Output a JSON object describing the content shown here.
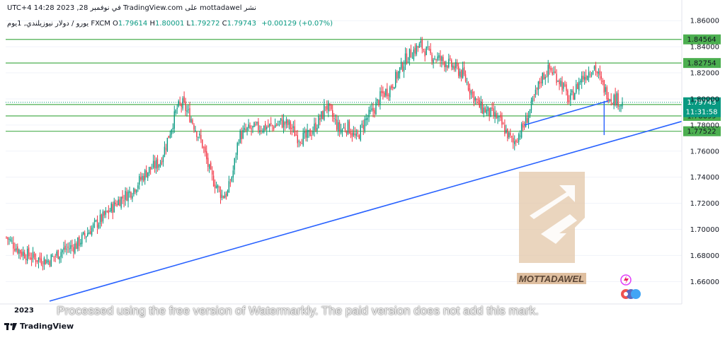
{
  "header": {
    "publisher_line": "نشر mottadawel على TradingView.com في نوفمبر 28, 2023 14:28 UTC+4",
    "symbol_title": "يورو / دولار نيوزيلندي, 1يوم  FXCM",
    "ohlc": {
      "open_label": "O",
      "open": "1.79614",
      "high_label": "H",
      "high": "1.80001",
      "low_label": "L",
      "low": "1.79272",
      "close_label": "C",
      "close": "1.79743",
      "change": "+0.00129 (+0.07%)"
    }
  },
  "footer": {
    "brand": "TradingView"
  },
  "watermark": {
    "logo_text": "MOTTADAWEL",
    "processed_text": "Processed using the free version of Watermarkly. The paid version does not add this mark."
  },
  "colors": {
    "up": "#089981",
    "down": "#f23645",
    "level_line": "#4caf50",
    "trend_line": "#2962ff",
    "level_label_bg": "#4caf50",
    "current_label_bg": "#089981"
  },
  "chart_data": {
    "type": "candlestick",
    "title": "",
    "ylim": [
      1.645,
      1.865
    ],
    "y_ticks": [
      "1.86000",
      "1.84000",
      "1.82000",
      "1.80000",
      "1.78000",
      "1.76000",
      "1.74000",
      "1.72000",
      "1.70000",
      "1.68000",
      "1.66000"
    ],
    "x_tick_labels": [
      "2023",
      "",
      "",
      "",
      "",
      "",
      "",
      "",
      "",
      "",
      "",
      ""
    ],
    "horizontal_levels": [
      "1.84564",
      "1.82754",
      "1.79570",
      "1.78699",
      "1.77522"
    ],
    "current_price": "1.79743",
    "countdown": "11:31:58",
    "close_path": [
      [
        0,
        1.694
      ],
      [
        10,
        1.683
      ],
      [
        20,
        1.678
      ],
      [
        30,
        1.676
      ],
      [
        40,
        1.684
      ],
      [
        50,
        1.688
      ],
      [
        60,
        1.7
      ],
      [
        70,
        1.71
      ],
      [
        80,
        1.722
      ],
      [
        90,
        1.73
      ],
      [
        100,
        1.744
      ],
      [
        110,
        1.752
      ],
      [
        116,
        1.772
      ],
      [
        122,
        1.793
      ],
      [
        126,
        1.796
      ],
      [
        132,
        1.785
      ],
      [
        140,
        1.765
      ],
      [
        146,
        1.741
      ],
      [
        154,
        1.726
      ],
      [
        158,
        1.728
      ],
      [
        162,
        1.745
      ],
      [
        166,
        1.771
      ],
      [
        172,
        1.776
      ],
      [
        180,
        1.778
      ],
      [
        190,
        1.779
      ],
      [
        196,
        1.782
      ],
      [
        202,
        1.78
      ],
      [
        208,
        1.771
      ],
      [
        214,
        1.77
      ],
      [
        220,
        1.778
      ],
      [
        226,
        1.788
      ],
      [
        228,
        1.796
      ],
      [
        232,
        1.788
      ],
      [
        238,
        1.776
      ],
      [
        244,
        1.779
      ],
      [
        250,
        1.769
      ],
      [
        256,
        1.783
      ],
      [
        262,
        1.791
      ],
      [
        268,
        1.803
      ],
      [
        274,
        1.808
      ],
      [
        280,
        1.82
      ],
      [
        286,
        1.832
      ],
      [
        292,
        1.838
      ],
      [
        296,
        1.841
      ],
      [
        302,
        1.834
      ],
      [
        308,
        1.831
      ],
      [
        314,
        1.828
      ],
      [
        320,
        1.824
      ],
      [
        326,
        1.819
      ],
      [
        332,
        1.806
      ],
      [
        338,
        1.794
      ],
      [
        344,
        1.79
      ],
      [
        350,
        1.786
      ],
      [
        354,
        1.78
      ],
      [
        358,
        1.773
      ],
      [
        362,
        1.766
      ],
      [
        366,
        1.773
      ],
      [
        370,
        1.78
      ],
      [
        376,
        1.797
      ],
      [
        382,
        1.816
      ],
      [
        388,
        1.823
      ],
      [
        394,
        1.816
      ],
      [
        398,
        1.809
      ],
      [
        402,
        1.798
      ],
      [
        406,
        1.806
      ],
      [
        410,
        1.815
      ],
      [
        416,
        1.821
      ],
      [
        420,
        1.825
      ],
      [
        424,
        1.815
      ],
      [
        428,
        1.806
      ],
      [
        432,
        1.801
      ],
      [
        436,
        1.8
      ],
      [
        440,
        1.796
      ]
    ]
  }
}
